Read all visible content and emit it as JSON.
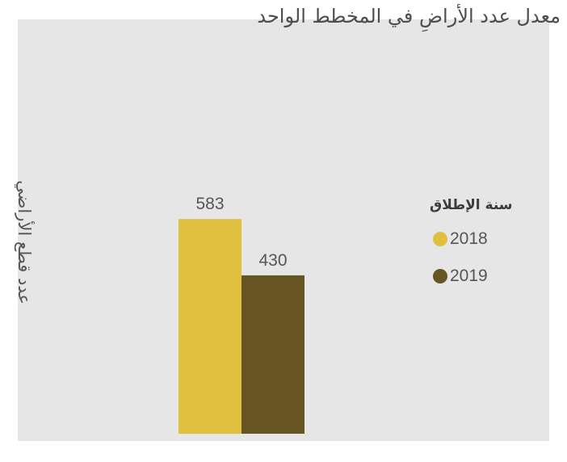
{
  "chart_data": {
    "type": "bar",
    "title": "معدل عدد الأراضِ في المخطط الواحد",
    "xlabel": "",
    "ylabel": "عدد قطع الأراضي",
    "ylim": [
      0,
      680
    ],
    "grid": false,
    "legend_title": "سنة الإطلاق",
    "legend_position": "right",
    "series": [
      {
        "name": "2018",
        "value": 583,
        "color": "#e0bf3f"
      },
      {
        "name": "2019",
        "value": 430,
        "color": "#665522"
      }
    ]
  }
}
